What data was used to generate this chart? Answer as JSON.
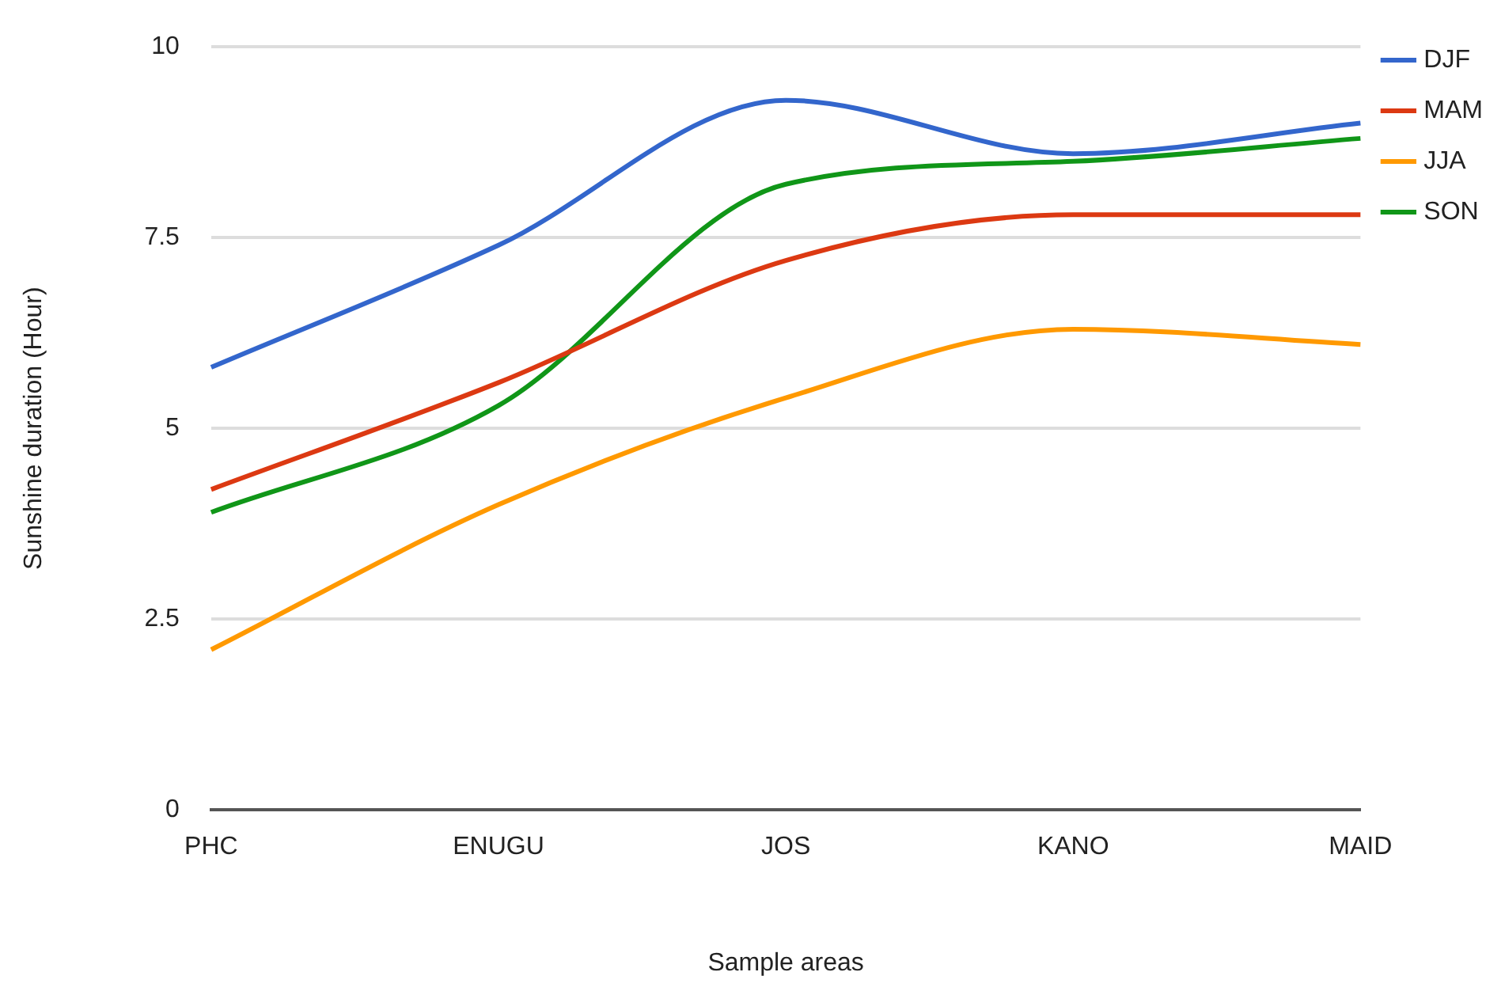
{
  "chart_data": {
    "type": "line",
    "xlabel": "Sample areas",
    "ylabel": "Sunshine duration (Hour)",
    "categories": [
      "PHC",
      "ENUGU",
      "JOS",
      "KANO",
      "MAID"
    ],
    "series": [
      {
        "name": "DJF",
        "color": "#3366cc",
        "values": [
          5.8,
          7.4,
          9.3,
          8.6,
          9.0
        ]
      },
      {
        "name": "MAM",
        "color": "#dc3912",
        "values": [
          4.2,
          5.6,
          7.2,
          7.8,
          7.8
        ]
      },
      {
        "name": "JJA",
        "color": "#ff9900",
        "values": [
          2.1,
          4.0,
          5.4,
          6.3,
          6.1
        ]
      },
      {
        "name": "SON",
        "color": "#109618",
        "values": [
          3.9,
          5.3,
          8.2,
          8.5,
          8.8
        ]
      }
    ],
    "ylim": [
      0,
      10
    ],
    "yticks": [
      0,
      2.5,
      5,
      7.5,
      10
    ],
    "grid": "y",
    "legend": "top right",
    "marker": "none",
    "line_style": "solid"
  }
}
